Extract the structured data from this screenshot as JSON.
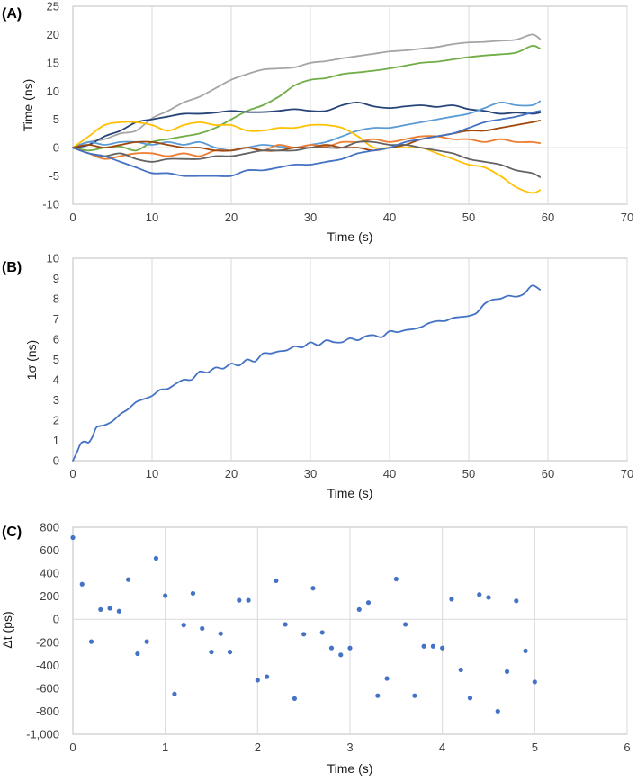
{
  "chart_data": [
    {
      "panel_label": "(A)",
      "type": "line",
      "xlabel": "Time (s)",
      "ylabel": "Time (ns)",
      "xlim": [
        0,
        70
      ],
      "ylim": [
        -10,
        25
      ],
      "xticks": [
        0,
        10,
        20,
        30,
        40,
        50,
        60,
        70
      ],
      "yticks": [
        -10,
        -5,
        0,
        5,
        10,
        15,
        20,
        25
      ],
      "grid": "vertical",
      "series": [
        {
          "name": "gray",
          "color": "#a5a5a5",
          "x": [
            0,
            2,
            4,
            6,
            8,
            10,
            12,
            14,
            16,
            18,
            20,
            22,
            24,
            26,
            28,
            30,
            32,
            34,
            36,
            38,
            40,
            42,
            44,
            46,
            48,
            50,
            52,
            54,
            56,
            58,
            59
          ],
          "y": [
            0,
            1,
            1.5,
            2.5,
            3,
            5.2,
            6.5,
            8,
            9,
            10.5,
            12,
            13,
            13.8,
            14,
            14.2,
            15,
            15.3,
            15.8,
            16.2,
            16.6,
            17,
            17.2,
            17.5,
            17.8,
            18.3,
            18.6,
            18.7,
            18.9,
            19.1,
            20,
            19.2
          ]
        },
        {
          "name": "green",
          "color": "#70ad47",
          "x": [
            0,
            2,
            4,
            6,
            8,
            10,
            12,
            14,
            16,
            18,
            20,
            22,
            24,
            26,
            28,
            30,
            32,
            34,
            36,
            38,
            40,
            42,
            44,
            46,
            48,
            50,
            52,
            54,
            56,
            58,
            59
          ],
          "y": [
            0,
            -0.5,
            0,
            0.2,
            -0.5,
            1,
            1.5,
            2,
            2.5,
            3.5,
            5,
            6.5,
            7.5,
            9,
            11,
            12,
            12.3,
            13,
            13.3,
            13.6,
            14,
            14.5,
            15,
            15.2,
            15.6,
            16,
            16.3,
            16.5,
            16.8,
            18,
            17.5
          ]
        },
        {
          "name": "dark blue",
          "color": "#264478",
          "x": [
            0,
            2,
            4,
            6,
            8,
            10,
            12,
            14,
            16,
            18,
            20,
            22,
            24,
            26,
            28,
            30,
            32,
            34,
            36,
            38,
            40,
            42,
            44,
            46,
            48,
            50,
            52,
            54,
            56,
            58,
            59
          ],
          "y": [
            0,
            0.5,
            2,
            3,
            4.5,
            5,
            5.5,
            6,
            6,
            6.2,
            6.5,
            6.3,
            6.3,
            6.5,
            6.8,
            6.5,
            6.5,
            7.5,
            8,
            7.3,
            7,
            7.3,
            7.5,
            7.2,
            7.5,
            6.8,
            6.5,
            6,
            6.2,
            6,
            6.2
          ]
        },
        {
          "name": "light blue",
          "color": "#5b9bd5",
          "x": [
            0,
            2,
            4,
            6,
            8,
            10,
            12,
            14,
            16,
            18,
            20,
            22,
            24,
            26,
            28,
            30,
            32,
            34,
            36,
            38,
            40,
            42,
            44,
            46,
            48,
            50,
            52,
            54,
            56,
            58,
            59
          ],
          "y": [
            0,
            1,
            0.5,
            1,
            1,
            0.5,
            1,
            0.5,
            1,
            0,
            -0.5,
            0,
            0.5,
            0.2,
            0,
            0.5,
            1,
            2,
            3,
            3.5,
            3.5,
            4,
            4.5,
            5,
            5.5,
            6,
            7,
            8,
            7.5,
            7.5,
            8.2
          ]
        },
        {
          "name": "yellow",
          "color": "#ffc000",
          "x": [
            0,
            2,
            4,
            6,
            8,
            10,
            12,
            14,
            16,
            18,
            20,
            22,
            24,
            26,
            28,
            30,
            32,
            34,
            36,
            38,
            40,
            42,
            44,
            46,
            48,
            50,
            52,
            54,
            56,
            58,
            59
          ],
          "y": [
            0,
            2,
            4,
            4.5,
            4.5,
            4,
            3,
            4,
            4.5,
            4,
            4,
            3,
            3,
            3.5,
            3.5,
            4,
            4,
            3.5,
            2,
            0,
            0,
            0,
            0,
            -1,
            -2,
            -3,
            -3.5,
            -5,
            -7,
            -8,
            -7.5
          ]
        },
        {
          "name": "orange",
          "color": "#ed7d31",
          "x": [
            0,
            2,
            4,
            6,
            8,
            10,
            12,
            14,
            16,
            18,
            20,
            22,
            24,
            26,
            28,
            30,
            32,
            34,
            36,
            38,
            40,
            42,
            44,
            46,
            48,
            50,
            52,
            54,
            56,
            58,
            59
          ],
          "y": [
            0,
            -1,
            -2,
            -1.5,
            -1,
            -1,
            -1.5,
            -1,
            -1.5,
            -0.5,
            -0.5,
            0,
            -0.5,
            0.5,
            0,
            0.5,
            0.2,
            1,
            1,
            1.5,
            1,
            1.5,
            2,
            2,
            1.5,
            1.5,
            1,
            1.5,
            1,
            1,
            0.8
          ]
        },
        {
          "name": "brown",
          "color": "#9e480e",
          "x": [
            0,
            2,
            4,
            6,
            8,
            10,
            12,
            14,
            16,
            18,
            20,
            22,
            24,
            26,
            28,
            30,
            32,
            34,
            36,
            38,
            40,
            42,
            44,
            46,
            48,
            50,
            52,
            54,
            56,
            58,
            59
          ],
          "y": [
            0,
            0.5,
            0,
            0.5,
            1,
            1,
            0.5,
            0,
            0,
            -0.5,
            -0.5,
            0,
            -0.5,
            -0.5,
            0,
            0,
            0.5,
            0,
            0,
            -0.5,
            0,
            0.5,
            1.5,
            2,
            2.5,
            3,
            3,
            3.5,
            4,
            4.5,
            4.8
          ]
        },
        {
          "name": "dark gray",
          "color": "#636363",
          "x": [
            0,
            2,
            4,
            6,
            8,
            10,
            12,
            14,
            16,
            18,
            20,
            22,
            24,
            26,
            28,
            30,
            32,
            34,
            36,
            38,
            40,
            42,
            44,
            46,
            48,
            50,
            52,
            54,
            56,
            58,
            59
          ],
          "y": [
            0,
            -1,
            -1.5,
            -1,
            -2,
            -2.5,
            -2,
            -2,
            -2,
            -1.5,
            -1.5,
            -1,
            -0.5,
            -0.5,
            -0.5,
            0,
            0,
            0,
            1,
            1,
            0.5,
            0.5,
            0,
            -0.5,
            -1,
            -2,
            -2.5,
            -3,
            -4,
            -4.5,
            -5.2
          ]
        },
        {
          "name": "blue",
          "color": "#4472c4",
          "x": [
            0,
            2,
            4,
            6,
            8,
            10,
            12,
            14,
            16,
            18,
            20,
            22,
            24,
            26,
            28,
            30,
            32,
            34,
            36,
            38,
            40,
            42,
            44,
            46,
            48,
            50,
            52,
            54,
            56,
            58,
            59
          ],
          "y": [
            0,
            -1,
            -1.5,
            -2.5,
            -3.5,
            -4.5,
            -4.5,
            -5,
            -5,
            -5,
            -5,
            -4,
            -4,
            -3.5,
            -3,
            -3,
            -2.5,
            -2,
            -1,
            -0.5,
            0,
            1,
            1.5,
            2,
            2.5,
            3.5,
            4.5,
            5,
            5.5,
            6.2,
            6.5
          ]
        }
      ]
    },
    {
      "panel_label": "(B)",
      "type": "line",
      "xlabel": "Time (s)",
      "ylabel": "1σ (ns)",
      "xlim": [
        0,
        70
      ],
      "ylim": [
        0,
        10
      ],
      "xticks": [
        0,
        10,
        20,
        30,
        40,
        50,
        60,
        70
      ],
      "yticks": [
        0,
        1,
        2,
        3,
        4,
        5,
        6,
        7,
        8,
        9,
        10
      ],
      "grid": "vertical",
      "series": [
        {
          "name": "1σ",
          "color": "#4472c4",
          "x": [
            0,
            0.5,
            1,
            1.5,
            2,
            2.5,
            3,
            4,
            5,
            6,
            7,
            8,
            9,
            10,
            11,
            12,
            13,
            14,
            15,
            16,
            17,
            18,
            19,
            20,
            21,
            22,
            23,
            24,
            25,
            26,
            27,
            28,
            29,
            30,
            31,
            32,
            33,
            34,
            35,
            36,
            37,
            38,
            39,
            40,
            41,
            42,
            43,
            44,
            45,
            46,
            47,
            48,
            49,
            50,
            51,
            52,
            53,
            54,
            55,
            56,
            57,
            58,
            59
          ],
          "y": [
            0,
            0.4,
            0.85,
            0.95,
            0.9,
            1.2,
            1.65,
            1.75,
            1.95,
            2.3,
            2.55,
            2.9,
            3.05,
            3.2,
            3.5,
            3.55,
            3.8,
            4.0,
            4.0,
            4.4,
            4.35,
            4.6,
            4.55,
            4.8,
            4.7,
            5.0,
            4.9,
            5.3,
            5.3,
            5.4,
            5.45,
            5.65,
            5.6,
            5.85,
            5.7,
            5.95,
            5.85,
            5.85,
            6.05,
            5.95,
            6.15,
            6.2,
            6.1,
            6.4,
            6.35,
            6.45,
            6.5,
            6.6,
            6.8,
            6.9,
            6.9,
            7.05,
            7.1,
            7.15,
            7.3,
            7.75,
            7.95,
            8.0,
            8.15,
            8.1,
            8.25,
            8.65,
            8.45
          ]
        }
      ]
    },
    {
      "panel_label": "(C)",
      "type": "scatter",
      "xlabel": "Time (s)",
      "ylabel": "Δt (ps)",
      "xlim": [
        0,
        6
      ],
      "ylim": [
        -1000,
        800
      ],
      "xticks": [
        0,
        1,
        2,
        3,
        4,
        5,
        6
      ],
      "yticks": [
        -1000,
        -800,
        -600,
        -400,
        -200,
        0,
        200,
        400,
        600,
        800
      ],
      "ytick_labels": [
        "-1,000",
        "-800",
        "-600",
        "-400",
        "-200",
        "0",
        "200",
        "400",
        "600",
        "800"
      ],
      "grid": "vertical",
      "series": [
        {
          "name": "Δt",
          "color": "#4472c4",
          "x": [
            0,
            0.1,
            0.2,
            0.3,
            0.4,
            0.5,
            0.6,
            0.7,
            0.8,
            0.9,
            1.0,
            1.1,
            1.2,
            1.3,
            1.4,
            1.5,
            1.6,
            1.7,
            1.8,
            1.9,
            2.0,
            2.1,
            2.2,
            2.3,
            2.4,
            2.5,
            2.6,
            2.7,
            2.8,
            2.9,
            3.0,
            3.1,
            3.2,
            3.3,
            3.4,
            3.5,
            3.6,
            3.7,
            3.8,
            3.9,
            4.0,
            4.1,
            4.2,
            4.3,
            4.4,
            4.5,
            4.6,
            4.7,
            4.8,
            4.9,
            5.0
          ],
          "y": [
            710,
            305,
            -195,
            85,
            95,
            70,
            345,
            -300,
            -195,
            530,
            205,
            -650,
            -50,
            225,
            -80,
            -285,
            -125,
            -285,
            165,
            165,
            -530,
            -500,
            335,
            -45,
            -690,
            -130,
            270,
            -115,
            -250,
            -310,
            -250,
            85,
            145,
            -665,
            -515,
            350,
            -45,
            -665,
            -235,
            -235,
            -250,
            175,
            -440,
            -685,
            215,
            190,
            -800,
            -455,
            160,
            -275,
            -545
          ]
        }
      ]
    }
  ]
}
